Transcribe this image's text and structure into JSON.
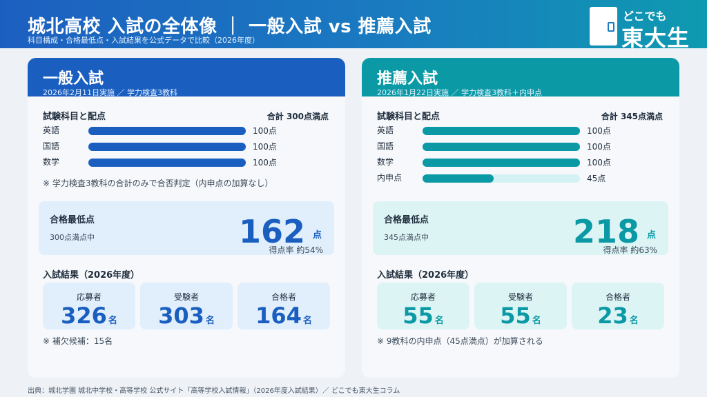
{
  "header": {
    "title": "城北高校 入試の全体像 ｜ 一般入試 vs 推薦入試",
    "subtitle": "科目構成・合格最低点・入試結果を公式データで比較（2026年度）"
  },
  "logo": {
    "top": "どこでも",
    "bottom": "東大生"
  },
  "general": {
    "title": "一般入試",
    "meta": "2026年2月11日実施 ／ 学力検査3教科",
    "subjects_label": "試験科目と配点",
    "total": "合計 300点満点",
    "subjects": [
      {
        "name": "英語",
        "score": "100点",
        "level": 1.0
      },
      {
        "name": "国語",
        "score": "100点",
        "level": 1.0
      },
      {
        "name": "数学",
        "score": "100点",
        "level": 1.0
      }
    ],
    "subjects_note": "※ 学力検査3教科の合計のみで合否判定（内申点の加算なし）",
    "min": {
      "label": "合格最低点",
      "sub": "300点満点中",
      "value": "162",
      "unit": "点",
      "rate": "得点率 約54%"
    },
    "results_label": "入試結果（2026年度）",
    "stats": [
      {
        "label": "応募者",
        "value": "326",
        "unit": "名"
      },
      {
        "label": "受験者",
        "value": "303",
        "unit": "名"
      },
      {
        "label": "合格者",
        "value": "164",
        "unit": "名"
      }
    ],
    "results_note": "※ 補欠候補：15名"
  },
  "recommend": {
    "title": "推薦入試",
    "meta": "2026年1月22日実施 ／ 学力検査3教科＋内申点",
    "subjects_label": "試験科目と配点",
    "total": "合計 345点満点",
    "subjects": [
      {
        "name": "英語",
        "score": "100点",
        "level": 1.0
      },
      {
        "name": "国語",
        "score": "100点",
        "level": 1.0
      },
      {
        "name": "数学",
        "score": "100点",
        "level": 1.0
      },
      {
        "name": "内申点",
        "score": "45点",
        "level": 0.45
      }
    ],
    "min": {
      "label": "合格最低点",
      "sub": "345点満点中",
      "value": "218",
      "unit": "点",
      "rate": "得点率 約63%"
    },
    "results_label": "入試結果（2026年度）",
    "stats": [
      {
        "label": "応募者",
        "value": "55",
        "unit": "名"
      },
      {
        "label": "受験者",
        "value": "55",
        "unit": "名"
      },
      {
        "label": "合格者",
        "value": "23",
        "unit": "名"
      }
    ],
    "results_note": "※ 9教科の内申点（45点満点）が加算される"
  },
  "footer": "出典：城北学園 城北中学校・高等学校 公式サイト「高等学校入試情報」（2026年度入試結果）／ どこでも東大生コラム",
  "colors": {
    "general": "#1a5fc0",
    "recommend": "#0a99a5"
  }
}
